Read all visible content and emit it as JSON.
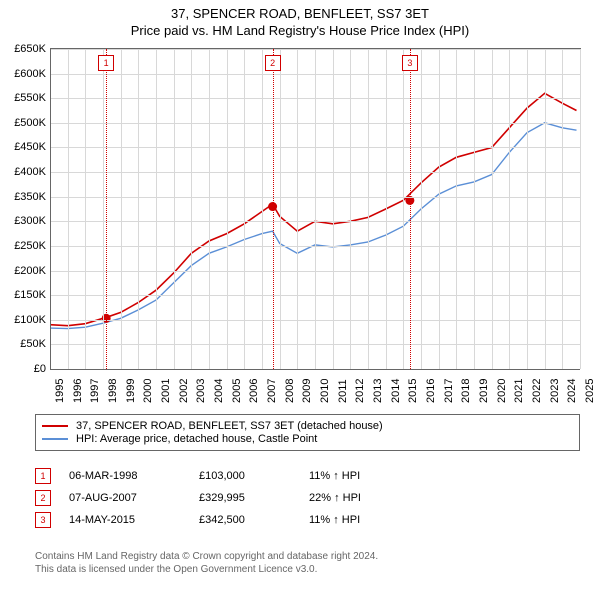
{
  "title_line1": "37, SPENCER ROAD, BENFLEET, SS7 3ET",
  "title_line2": "Price paid vs. HM Land Registry's House Price Index (HPI)",
  "chart": {
    "type": "line",
    "background_color": "#ffffff",
    "grid_color": "#d8d8d8",
    "axis_color": "#666666",
    "ylim_min": 0,
    "ylim_max": 650000,
    "ytick_step": 50000,
    "yticks": [
      "£0",
      "£50K",
      "£100K",
      "£150K",
      "£200K",
      "£250K",
      "£300K",
      "£350K",
      "£400K",
      "£450K",
      "£500K",
      "£550K",
      "£600K",
      "£650K"
    ],
    "x_min": 1995,
    "x_max": 2025,
    "xticks": [
      1995,
      1996,
      1997,
      1998,
      1999,
      2000,
      2001,
      2002,
      2003,
      2004,
      2005,
      2006,
      2007,
      2008,
      2009,
      2010,
      2011,
      2012,
      2013,
      2014,
      2015,
      2016,
      2017,
      2018,
      2019,
      2020,
      2021,
      2022,
      2023,
      2024,
      2025
    ],
    "series_red": {
      "label": "37, SPENCER ROAD, BENFLEET, SS7 3ET (detached house)",
      "color": "#d00000",
      "line_width": 1.6,
      "data": [
        [
          1995,
          90000
        ],
        [
          1996,
          88000
        ],
        [
          1997,
          92000
        ],
        [
          1998,
          103000
        ],
        [
          1998.2,
          105000
        ],
        [
          1999,
          115000
        ],
        [
          2000,
          135000
        ],
        [
          2001,
          160000
        ],
        [
          2002,
          195000
        ],
        [
          2003,
          235000
        ],
        [
          2004,
          260000
        ],
        [
          2005,
          275000
        ],
        [
          2006,
          295000
        ],
        [
          2007,
          320000
        ],
        [
          2007.6,
          335000
        ],
        [
          2008,
          310000
        ],
        [
          2009,
          280000
        ],
        [
          2010,
          300000
        ],
        [
          2011,
          295000
        ],
        [
          2012,
          300000
        ],
        [
          2013,
          308000
        ],
        [
          2014,
          325000
        ],
        [
          2015,
          342500
        ],
        [
          2016,
          378000
        ],
        [
          2017,
          410000
        ],
        [
          2018,
          430000
        ],
        [
          2019,
          440000
        ],
        [
          2020,
          450000
        ],
        [
          2021,
          490000
        ],
        [
          2022,
          530000
        ],
        [
          2023,
          560000
        ],
        [
          2024,
          540000
        ],
        [
          2024.8,
          525000
        ]
      ]
    },
    "series_blue": {
      "label": "HPI: Average price, detached house, Castle Point",
      "color": "#5b8fd6",
      "line_width": 1.4,
      "data": [
        [
          1995,
          83000
        ],
        [
          1996,
          82000
        ],
        [
          1997,
          85000
        ],
        [
          1998,
          93000
        ],
        [
          1999,
          103000
        ],
        [
          2000,
          120000
        ],
        [
          2001,
          140000
        ],
        [
          2002,
          175000
        ],
        [
          2003,
          210000
        ],
        [
          2004,
          235000
        ],
        [
          2005,
          248000
        ],
        [
          2006,
          263000
        ],
        [
          2007,
          275000
        ],
        [
          2007.6,
          280000
        ],
        [
          2008,
          255000
        ],
        [
          2009,
          235000
        ],
        [
          2010,
          252000
        ],
        [
          2011,
          248000
        ],
        [
          2012,
          252000
        ],
        [
          2013,
          258000
        ],
        [
          2014,
          272000
        ],
        [
          2015,
          290000
        ],
        [
          2016,
          325000
        ],
        [
          2017,
          355000
        ],
        [
          2018,
          372000
        ],
        [
          2019,
          380000
        ],
        [
          2020,
          395000
        ],
        [
          2021,
          440000
        ],
        [
          2022,
          480000
        ],
        [
          2023,
          500000
        ],
        [
          2024,
          490000
        ],
        [
          2024.8,
          485000
        ]
      ]
    },
    "sale_markers": [
      {
        "num": "1",
        "year": 1998.18,
        "price": 103000
      },
      {
        "num": "2",
        "year": 2007.6,
        "price": 329995
      },
      {
        "num": "3",
        "year": 2015.37,
        "price": 342500
      }
    ],
    "marker_color": "#d00000",
    "marker_radius": 4.5
  },
  "legend": {
    "items": [
      {
        "color": "#d00000",
        "label": "37, SPENCER ROAD, BENFLEET, SS7 3ET (detached house)"
      },
      {
        "color": "#5b8fd6",
        "label": "HPI: Average price, detached house, Castle Point"
      }
    ]
  },
  "sales": [
    {
      "num": "1",
      "date": "06-MAR-1998",
      "price": "£103,000",
      "pct": "11% ↑ HPI"
    },
    {
      "num": "2",
      "date": "07-AUG-2007",
      "price": "£329,995",
      "pct": "22% ↑ HPI"
    },
    {
      "num": "3",
      "date": "14-MAY-2015",
      "price": "£342,500",
      "pct": "11% ↑ HPI"
    }
  ],
  "footer_line1": "Contains HM Land Registry data © Crown copyright and database right 2024.",
  "footer_line2": "This data is licensed under the Open Government Licence v3.0."
}
